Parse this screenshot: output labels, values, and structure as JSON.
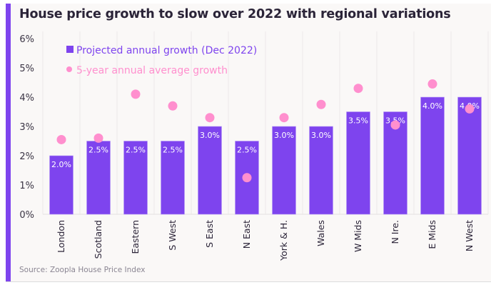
{
  "title": "House price growth to slow over 2022 with regional variations",
  "source": "Source: Zoopla House Price Index",
  "colors": {
    "accent": "#7e44ee",
    "bar": "#7e44ee",
    "dot": "#ff8fce",
    "background": "#faf8f7",
    "title": "#2b2438"
  },
  "chart_data": {
    "type": "bar",
    "title": "House price growth to slow over 2022 with regional variations",
    "xlabel": "",
    "ylabel": "",
    "ylim": [
      0,
      6
    ],
    "yticks": [
      "0%",
      "1%",
      "2%",
      "3%",
      "4%",
      "5%",
      "6%"
    ],
    "grid": "vertical separators",
    "legend_position": "top-left",
    "categories": [
      "London",
      "Scotland",
      "Eastern",
      "S West",
      "S East",
      "N East",
      "York & H.",
      "Wales",
      "W Mids",
      "N Ire.",
      "E Mids",
      "N West"
    ],
    "series": [
      {
        "name": "Projected annual growth (Dec 2022)",
        "type": "bar",
        "values": [
          2.0,
          2.5,
          2.5,
          2.5,
          3.0,
          2.5,
          3.0,
          3.0,
          3.5,
          3.5,
          4.0,
          4.0
        ],
        "labels": [
          "2.0%",
          "2.5%",
          "2.5%",
          "2.5%",
          "3.0%",
          "2.5%",
          "3.0%",
          "3.0%",
          "3.5%",
          "3.5%",
          "4.0%",
          "4.0%"
        ]
      },
      {
        "name": "5-year annual average growth",
        "type": "scatter",
        "values": [
          2.55,
          2.6,
          4.1,
          3.7,
          3.3,
          1.25,
          3.3,
          3.75,
          4.3,
          3.05,
          4.45,
          3.6
        ]
      }
    ]
  }
}
